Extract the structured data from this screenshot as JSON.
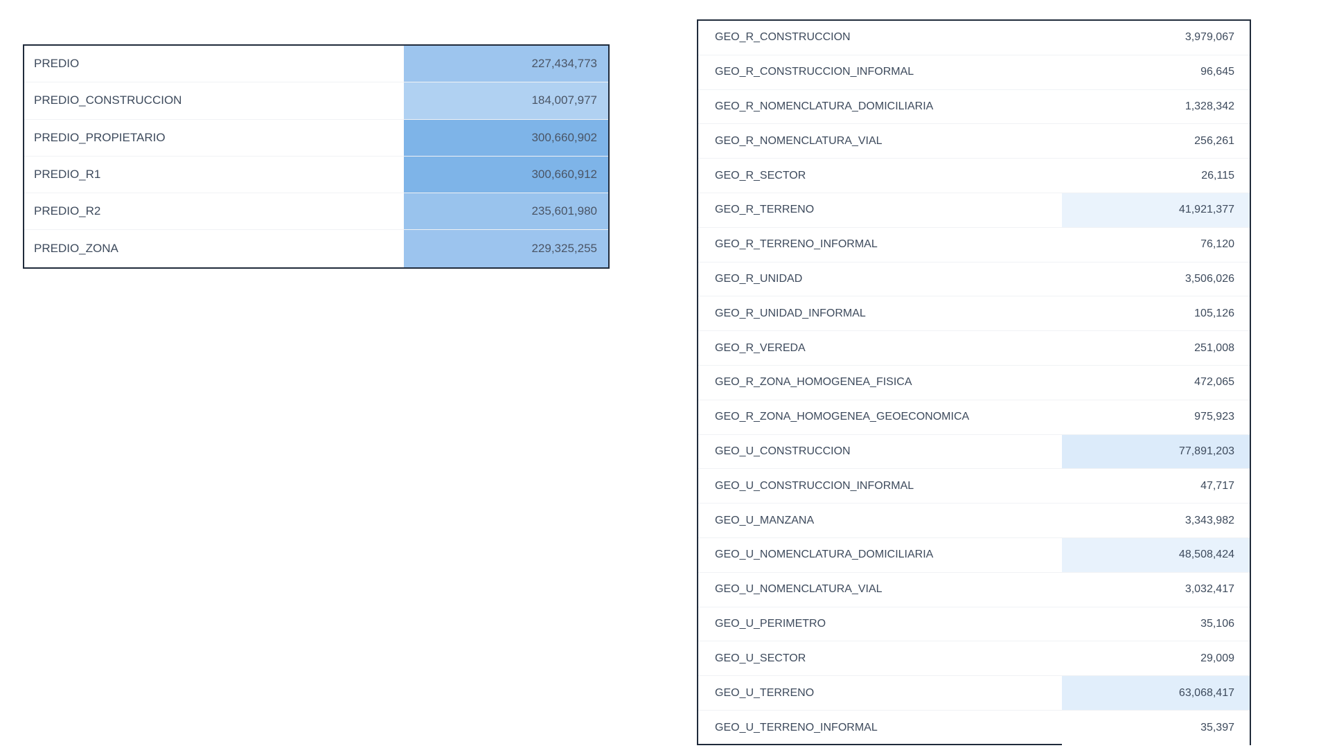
{
  "left_table": {
    "rows": [
      {
        "name": "PREDIO",
        "value": "227,434,773",
        "color": "#9dc5ee"
      },
      {
        "name": "PREDIO_CONSTRUCCION",
        "value": "184,007,977",
        "color": "#b0d1f2"
      },
      {
        "name": "PREDIO_PROPIETARIO",
        "value": "300,660,902",
        "color": "#7eb4e8"
      },
      {
        "name": "PREDIO_R1",
        "value": "300,660,912",
        "color": "#7eb4e8"
      },
      {
        "name": "PREDIO_R2",
        "value": "235,601,980",
        "color": "#99c3ed"
      },
      {
        "name": "PREDIO_ZONA",
        "value": "229,325,255",
        "color": "#9cc4ee"
      }
    ]
  },
  "right_table": {
    "rows": [
      {
        "name": "GEO_R_CONSTRUCCION",
        "value": "3,979,067",
        "color": "#ffffff"
      },
      {
        "name": "GEO_R_CONSTRUCCION_INFORMAL",
        "value": "96,645",
        "color": "#ffffff"
      },
      {
        "name": "GEO_R_NOMENCLATURA_DOMICILIARIA",
        "value": "1,328,342",
        "color": "#ffffff"
      },
      {
        "name": "GEO_R_NOMENCLATURA_VIAL",
        "value": "256,261",
        "color": "#ffffff"
      },
      {
        "name": "GEO_R_SECTOR",
        "value": "26,115",
        "color": "#ffffff"
      },
      {
        "name": "GEO_R_TERRENO",
        "value": "41,921,377",
        "color": "#eaf3fc"
      },
      {
        "name": "GEO_R_TERRENO_INFORMAL",
        "value": "76,120",
        "color": "#ffffff"
      },
      {
        "name": "GEO_R_UNIDAD",
        "value": "3,506,026",
        "color": "#ffffff"
      },
      {
        "name": "GEO_R_UNIDAD_INFORMAL",
        "value": "105,126",
        "color": "#ffffff"
      },
      {
        "name": "GEO_R_VEREDA",
        "value": "251,008",
        "color": "#ffffff"
      },
      {
        "name": "GEO_R_ZONA_HOMOGENEA_FISICA",
        "value": "472,065",
        "color": "#ffffff"
      },
      {
        "name": "GEO_R_ZONA_HOMOGENEA_GEOECONOMICA",
        "value": "975,923",
        "color": "#ffffff"
      },
      {
        "name": "GEO_U_CONSTRUCCION",
        "value": "77,891,203",
        "color": "#dcebfa"
      },
      {
        "name": "GEO_U_CONSTRUCCION_INFORMAL",
        "value": "47,717",
        "color": "#ffffff"
      },
      {
        "name": "GEO_U_MANZANA",
        "value": "3,343,982",
        "color": "#ffffff"
      },
      {
        "name": "GEO_U_NOMENCLATURA_DOMICILIARIA",
        "value": "48,508,424",
        "color": "#e8f2fc"
      },
      {
        "name": "GEO_U_NOMENCLATURA_VIAL",
        "value": "3,032,417",
        "color": "#ffffff"
      },
      {
        "name": "GEO_U_PERIMETRO",
        "value": "35,106",
        "color": "#ffffff"
      },
      {
        "name": "GEO_U_SECTOR",
        "value": "29,009",
        "color": "#ffffff"
      },
      {
        "name": "GEO_U_TERRENO",
        "value": "63,068,417",
        "color": "#e1eefb"
      },
      {
        "name": "GEO_U_TERRENO_INFORMAL",
        "value": "35,397",
        "color": "#ffffff"
      }
    ]
  }
}
